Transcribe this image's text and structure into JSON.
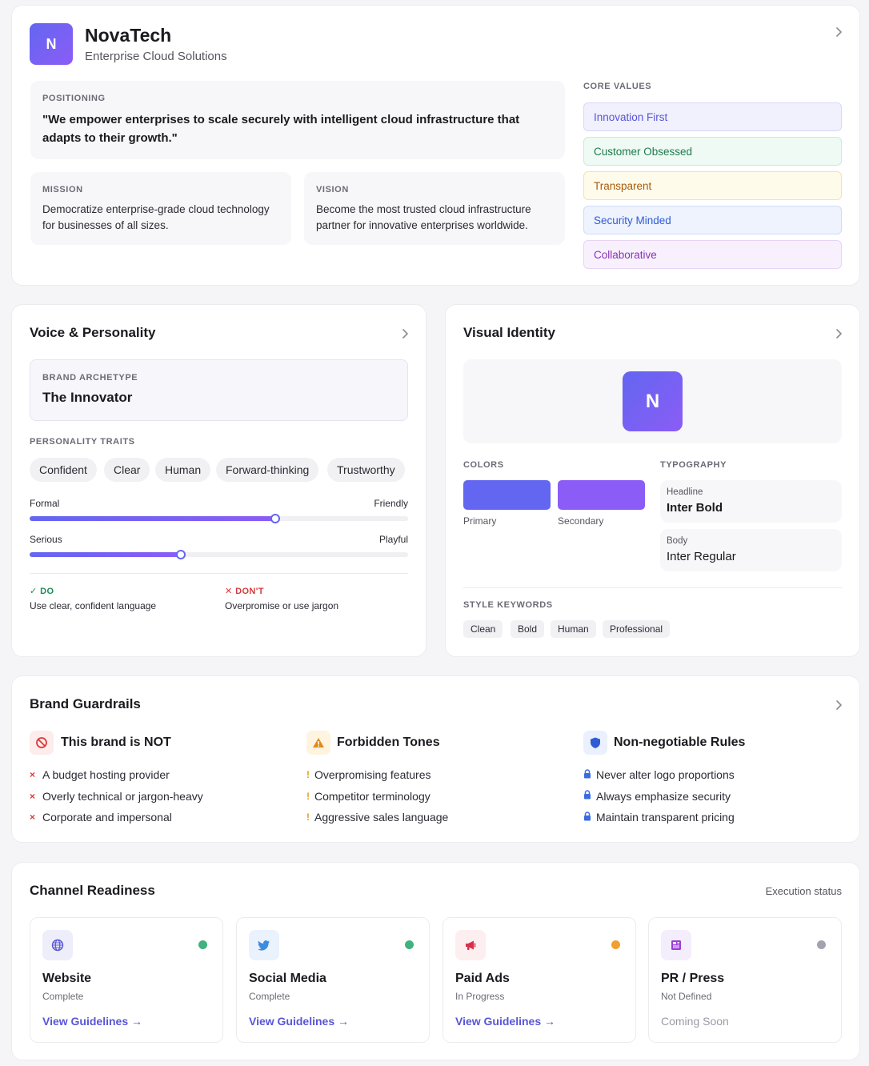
{
  "brand": {
    "logo_letter": "N",
    "name": "NovaTech",
    "tagline": "Enterprise Cloud Solutions"
  },
  "positioning": {
    "label": "POSITIONING",
    "text": "\"We empower enterprises to scale securely with intelligent cloud infrastructure that adapts to their growth.\""
  },
  "mission": {
    "label": "MISSION",
    "text": "Democratize enterprise-grade cloud technology for businesses of all sizes."
  },
  "vision": {
    "label": "VISION",
    "text": "Become the most trusted cloud infrastructure partner for innovative enterprises worldwide."
  },
  "core_values": {
    "label": "CORE VALUES",
    "items": [
      {
        "label": "Innovation First",
        "color": "#5856d6",
        "bg": "#f1f0fd",
        "border": "#d9d8f7"
      },
      {
        "label": "Customer Obsessed",
        "color": "#1f7a4c",
        "bg": "#eefaf3",
        "border": "#c9ecd8"
      },
      {
        "label": "Transparent",
        "color": "#a85a0c",
        "bg": "#fffbea",
        "border": "#f6e3a6"
      },
      {
        "label": "Security Minded",
        "color": "#2f5bd3",
        "bg": "#eef3fe",
        "border": "#cfdcf8"
      },
      {
        "label": "Collaborative",
        "color": "#8a32b8",
        "bg": "#f8f1fd",
        "border": "#e7d4f5"
      }
    ]
  },
  "voice": {
    "title": "Voice & Personality",
    "archetype_label": "BRAND ARCHETYPE",
    "archetype": "The Innovator",
    "traits_label": "PERSONALITY TRAITS",
    "traits": [
      "Confident",
      "Clear",
      "Human",
      "Forward-thinking",
      "Trustworthy"
    ],
    "sliders": [
      {
        "left": "Formal",
        "right": "Friendly",
        "value": 0.65
      },
      {
        "left": "Serious",
        "right": "Playful",
        "value": 0.4
      }
    ],
    "do_label": "DO",
    "do_text": "Use clear, confident language",
    "dont_label": "DON'T",
    "dont_text": "Overpromise or use jargon"
  },
  "visual": {
    "title": "Visual Identity",
    "logo_letter": "N",
    "colors_label": "COLORS",
    "colors": [
      {
        "name": "Primary",
        "hex": "#6366f1"
      },
      {
        "name": "Secondary",
        "hex": "#8b5cf6"
      }
    ],
    "typography_label": "TYPOGRAPHY",
    "headline_label": "Headline",
    "headline_font": "Inter Bold",
    "body_label": "Body",
    "body_font": "Inter Regular",
    "keywords_label": "STYLE KEYWORDS",
    "keywords": [
      "Clean",
      "Bold",
      "Human",
      "Professional"
    ]
  },
  "guardrails": {
    "title": "Brand Guardrails",
    "not": {
      "title": "This brand is NOT",
      "icon": "prohibited-icon",
      "items": [
        "A budget hosting provider",
        "Overly technical or jargon-heavy",
        "Corporate and impersonal"
      ]
    },
    "forbidden": {
      "title": "Forbidden Tones",
      "icon": "warning-icon",
      "items": [
        "Overpromising features",
        "Competitor terminology",
        "Aggressive sales language"
      ]
    },
    "rules": {
      "title": "Non-negotiable Rules",
      "icon": "shield-icon",
      "items": [
        "Never alter logo proportions",
        "Always emphasize security",
        "Maintain transparent pricing"
      ]
    }
  },
  "channels": {
    "title": "Channel Readiness",
    "subtitle": "Execution status",
    "items": [
      {
        "name": "Website",
        "status": "Complete",
        "link": "View Guidelines →",
        "icon": "globe-icon",
        "dot": "#3fb27f"
      },
      {
        "name": "Social Media",
        "status": "Complete",
        "link": "View Guidelines →",
        "icon": "twitter-icon",
        "dot": "#3fb27f"
      },
      {
        "name": "Paid Ads",
        "status": "In Progress",
        "link": "View Guidelines →",
        "icon": "megaphone-icon",
        "dot": "#f0a030"
      },
      {
        "name": "PR / Press",
        "status": "Not Defined",
        "link": "Coming Soon",
        "icon": "newspaper-icon",
        "dot": "#a3a3ad"
      }
    ]
  }
}
